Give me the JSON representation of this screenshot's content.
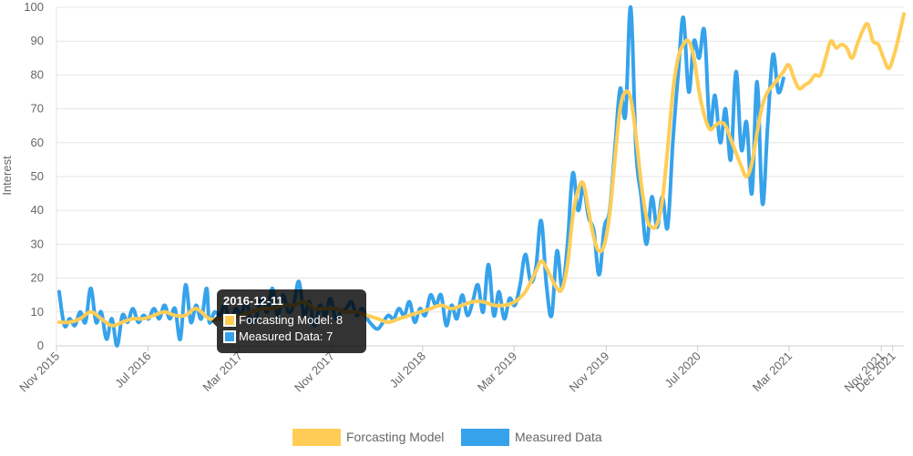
{
  "chart_data": {
    "type": "line",
    "ylabel": "Interest",
    "ylim": [
      0,
      100
    ],
    "yticks": [
      0,
      10,
      20,
      30,
      40,
      50,
      60,
      70,
      80,
      90,
      100
    ],
    "xlim": [
      "2015-11-01",
      "2021-12-31"
    ],
    "xticks": [
      {
        "label": "Nov 2015",
        "date": "2015-11-01"
      },
      {
        "label": "Jul 2016",
        "date": "2016-07-01"
      },
      {
        "label": "Mar 2017",
        "date": "2017-03-01"
      },
      {
        "label": "Nov 2017",
        "date": "2017-11-01"
      },
      {
        "label": "Jul 2018",
        "date": "2018-07-01"
      },
      {
        "label": "Mar 2019",
        "date": "2019-03-01"
      },
      {
        "label": "Nov 2019",
        "date": "2019-11-01"
      },
      {
        "label": "Jul 2020",
        "date": "2020-07-01"
      },
      {
        "label": "Mar 2021",
        "date": "2021-03-01"
      },
      {
        "label": "Nov 2021",
        "date": "2021-11-01"
      },
      {
        "label": "Dec 2021",
        "date": "2021-12-01"
      }
    ],
    "grid": true,
    "legend_position": "bottom",
    "series": [
      {
        "name": "Measured Data",
        "color": "#36A2EB",
        "points": [
          [
            "2015-11-08",
            16
          ],
          [
            "2015-11-22",
            6
          ],
          [
            "2015-12-06",
            8
          ],
          [
            "2015-12-20",
            6
          ],
          [
            "2016-01-03",
            10
          ],
          [
            "2016-01-17",
            7
          ],
          [
            "2016-01-31",
            17
          ],
          [
            "2016-02-14",
            7
          ],
          [
            "2016-02-28",
            10
          ],
          [
            "2016-03-13",
            2
          ],
          [
            "2016-03-27",
            8
          ],
          [
            "2016-04-10",
            0
          ],
          [
            "2016-04-24",
            9
          ],
          [
            "2016-05-08",
            7
          ],
          [
            "2016-05-22",
            11
          ],
          [
            "2016-06-05",
            7
          ],
          [
            "2016-06-19",
            9
          ],
          [
            "2016-07-03",
            8
          ],
          [
            "2016-07-17",
            11
          ],
          [
            "2016-07-31",
            8
          ],
          [
            "2016-08-14",
            12
          ],
          [
            "2016-08-28",
            8
          ],
          [
            "2016-09-11",
            11
          ],
          [
            "2016-09-25",
            2
          ],
          [
            "2016-10-09",
            18
          ],
          [
            "2016-10-23",
            7
          ],
          [
            "2016-11-06",
            12
          ],
          [
            "2016-11-20",
            8
          ],
          [
            "2016-12-04",
            17
          ],
          [
            "2016-12-11",
            7
          ],
          [
            "2016-12-25",
            10
          ],
          [
            "2017-01-08",
            9
          ],
          [
            "2017-01-22",
            12
          ],
          [
            "2017-02-05",
            6
          ],
          [
            "2017-02-19",
            11
          ],
          [
            "2017-03-05",
            9
          ],
          [
            "2017-03-19",
            13
          ],
          [
            "2017-04-02",
            7
          ],
          [
            "2017-04-16",
            9
          ],
          [
            "2017-04-30",
            14
          ],
          [
            "2017-05-14",
            10
          ],
          [
            "2017-05-28",
            17
          ],
          [
            "2017-06-11",
            9
          ],
          [
            "2017-06-25",
            15
          ],
          [
            "2017-07-09",
            10
          ],
          [
            "2017-07-23",
            12
          ],
          [
            "2017-08-06",
            19
          ],
          [
            "2017-08-20",
            9
          ],
          [
            "2017-09-03",
            13
          ],
          [
            "2017-09-17",
            6
          ],
          [
            "2017-10-01",
            12
          ],
          [
            "2017-10-15",
            9
          ],
          [
            "2017-10-29",
            14
          ],
          [
            "2017-11-12",
            8
          ],
          [
            "2017-11-26",
            10
          ],
          [
            "2017-12-10",
            11
          ],
          [
            "2017-12-24",
            13
          ],
          [
            "2018-01-07",
            9
          ],
          [
            "2018-01-21",
            11
          ],
          [
            "2018-02-04",
            8
          ],
          [
            "2018-02-18",
            6
          ],
          [
            "2018-03-04",
            5
          ],
          [
            "2018-03-18",
            7
          ],
          [
            "2018-04-01",
            9
          ],
          [
            "2018-04-15",
            8
          ],
          [
            "2018-04-29",
            11
          ],
          [
            "2018-05-13",
            9
          ],
          [
            "2018-05-27",
            13
          ],
          [
            "2018-06-10",
            7
          ],
          [
            "2018-06-24",
            11
          ],
          [
            "2018-07-08",
            9
          ],
          [
            "2018-07-22",
            15
          ],
          [
            "2018-08-05",
            12
          ],
          [
            "2018-08-19",
            15
          ],
          [
            "2018-09-02",
            6
          ],
          [
            "2018-09-16",
            12
          ],
          [
            "2018-09-30",
            8
          ],
          [
            "2018-10-14",
            15
          ],
          [
            "2018-10-28",
            9
          ],
          [
            "2018-11-11",
            13
          ],
          [
            "2018-11-25",
            18
          ],
          [
            "2018-12-09",
            10
          ],
          [
            "2018-12-23",
            24
          ],
          [
            "2019-01-06",
            9
          ],
          [
            "2019-01-20",
            16
          ],
          [
            "2019-02-03",
            8
          ],
          [
            "2019-02-17",
            14
          ],
          [
            "2019-03-03",
            12
          ],
          [
            "2019-03-17",
            18
          ],
          [
            "2019-03-31",
            27
          ],
          [
            "2019-04-14",
            19
          ],
          [
            "2019-04-28",
            23
          ],
          [
            "2019-05-12",
            37
          ],
          [
            "2019-05-26",
            18
          ],
          [
            "2019-06-09",
            9
          ],
          [
            "2019-06-23",
            28
          ],
          [
            "2019-07-07",
            17
          ],
          [
            "2019-07-21",
            30
          ],
          [
            "2019-08-04",
            51
          ],
          [
            "2019-08-18",
            40
          ],
          [
            "2019-09-01",
            47
          ],
          [
            "2019-09-15",
            38
          ],
          [
            "2019-09-29",
            34
          ],
          [
            "2019-10-13",
            21
          ],
          [
            "2019-10-27",
            35
          ],
          [
            "2019-11-10",
            40
          ],
          [
            "2019-11-24",
            58
          ],
          [
            "2019-12-08",
            76
          ],
          [
            "2019-12-22",
            68
          ],
          [
            "2020-01-05",
            100
          ],
          [
            "2020-01-19",
            58
          ],
          [
            "2020-02-02",
            44
          ],
          [
            "2020-02-16",
            30
          ],
          [
            "2020-03-01",
            44
          ],
          [
            "2020-03-15",
            35
          ],
          [
            "2020-03-29",
            44
          ],
          [
            "2020-04-12",
            35
          ],
          [
            "2020-04-26",
            60
          ],
          [
            "2020-05-10",
            80
          ],
          [
            "2020-05-24",
            97
          ],
          [
            "2020-06-07",
            75
          ],
          [
            "2020-06-21",
            90
          ],
          [
            "2020-07-05",
            85
          ],
          [
            "2020-07-19",
            93
          ],
          [
            "2020-08-02",
            65
          ],
          [
            "2020-08-16",
            74
          ],
          [
            "2020-08-30",
            60
          ],
          [
            "2020-09-13",
            70
          ],
          [
            "2020-09-27",
            55
          ],
          [
            "2020-10-11",
            81
          ],
          [
            "2020-10-25",
            58
          ],
          [
            "2020-11-08",
            66
          ],
          [
            "2020-11-22",
            45
          ],
          [
            "2020-12-06",
            78
          ],
          [
            "2020-12-20",
            42
          ],
          [
            "2021-01-03",
            65
          ],
          [
            "2021-01-17",
            86
          ],
          [
            "2021-01-31",
            75
          ],
          [
            "2021-02-14",
            79
          ]
        ]
      },
      {
        "name": "Forcasting Model",
        "color": "#FFCD56",
        "points": [
          [
            "2015-11-08",
            7
          ],
          [
            "2015-12-06",
            7
          ],
          [
            "2016-01-03",
            8
          ],
          [
            "2016-01-31",
            10
          ],
          [
            "2016-02-28",
            8
          ],
          [
            "2016-03-27",
            6
          ],
          [
            "2016-04-24",
            7
          ],
          [
            "2016-05-22",
            8
          ],
          [
            "2016-06-19",
            8
          ],
          [
            "2016-07-17",
            9
          ],
          [
            "2016-08-14",
            10
          ],
          [
            "2016-09-11",
            9
          ],
          [
            "2016-10-09",
            9
          ],
          [
            "2016-11-06",
            11
          ],
          [
            "2016-12-11",
            8
          ],
          [
            "2017-01-08",
            8
          ],
          [
            "2017-02-05",
            8
          ],
          [
            "2017-03-05",
            9
          ],
          [
            "2017-04-02",
            10
          ],
          [
            "2017-04-30",
            11
          ],
          [
            "2017-05-28",
            11
          ],
          [
            "2017-06-25",
            12
          ],
          [
            "2017-07-23",
            12
          ],
          [
            "2017-08-20",
            13
          ],
          [
            "2017-09-17",
            11
          ],
          [
            "2017-10-15",
            11
          ],
          [
            "2017-11-12",
            11
          ],
          [
            "2017-12-10",
            10
          ],
          [
            "2018-01-07",
            10
          ],
          [
            "2018-02-04",
            9
          ],
          [
            "2018-03-04",
            8
          ],
          [
            "2018-04-01",
            7
          ],
          [
            "2018-04-29",
            8
          ],
          [
            "2018-05-27",
            9
          ],
          [
            "2018-06-24",
            10
          ],
          [
            "2018-07-22",
            11
          ],
          [
            "2018-08-19",
            12
          ],
          [
            "2018-09-16",
            11
          ],
          [
            "2018-10-14",
            12
          ],
          [
            "2018-11-11",
            13
          ],
          [
            "2018-12-09",
            13
          ],
          [
            "2019-01-06",
            12
          ],
          [
            "2019-02-03",
            12
          ],
          [
            "2019-03-03",
            13
          ],
          [
            "2019-03-31",
            16
          ],
          [
            "2019-04-28",
            22
          ],
          [
            "2019-05-12",
            25
          ],
          [
            "2019-05-26",
            23
          ],
          [
            "2019-06-23",
            17
          ],
          [
            "2019-07-07",
            17
          ],
          [
            "2019-07-21",
            24
          ],
          [
            "2019-08-04",
            38
          ],
          [
            "2019-08-18",
            46
          ],
          [
            "2019-09-01",
            48
          ],
          [
            "2019-09-15",
            40
          ],
          [
            "2019-09-29",
            32
          ],
          [
            "2019-10-13",
            28
          ],
          [
            "2019-10-27",
            30
          ],
          [
            "2019-11-10",
            39
          ],
          [
            "2019-11-24",
            55
          ],
          [
            "2019-12-08",
            70
          ],
          [
            "2019-12-22",
            75
          ],
          [
            "2020-01-05",
            73
          ],
          [
            "2020-01-19",
            62
          ],
          [
            "2020-02-02",
            48
          ],
          [
            "2020-02-16",
            38
          ],
          [
            "2020-03-01",
            35
          ],
          [
            "2020-03-15",
            36
          ],
          [
            "2020-03-29",
            43
          ],
          [
            "2020-04-12",
            58
          ],
          [
            "2020-04-26",
            75
          ],
          [
            "2020-05-10",
            85
          ],
          [
            "2020-05-24",
            89
          ],
          [
            "2020-06-07",
            90
          ],
          [
            "2020-06-21",
            85
          ],
          [
            "2020-07-05",
            75
          ],
          [
            "2020-07-19",
            68
          ],
          [
            "2020-08-02",
            64
          ],
          [
            "2020-08-16",
            65
          ],
          [
            "2020-08-30",
            66
          ],
          [
            "2020-09-13",
            65
          ],
          [
            "2020-09-27",
            61
          ],
          [
            "2020-10-11",
            57
          ],
          [
            "2020-10-25",
            53
          ],
          [
            "2020-11-08",
            50
          ],
          [
            "2020-11-22",
            54
          ],
          [
            "2020-12-06",
            63
          ],
          [
            "2020-12-20",
            71
          ],
          [
            "2021-01-03",
            75
          ],
          [
            "2021-01-17",
            77
          ],
          [
            "2021-01-31",
            79
          ],
          [
            "2021-02-14",
            81
          ],
          [
            "2021-02-28",
            83
          ],
          [
            "2021-03-14",
            79
          ],
          [
            "2021-03-28",
            76
          ],
          [
            "2021-04-11",
            77
          ],
          [
            "2021-04-25",
            78
          ],
          [
            "2021-05-09",
            80
          ],
          [
            "2021-05-23",
            80
          ],
          [
            "2021-06-06",
            85
          ],
          [
            "2021-06-20",
            90
          ],
          [
            "2021-07-04",
            88
          ],
          [
            "2021-07-18",
            89
          ],
          [
            "2021-08-01",
            88
          ],
          [
            "2021-08-15",
            85
          ],
          [
            "2021-08-29",
            89
          ],
          [
            "2021-09-12",
            93
          ],
          [
            "2021-09-26",
            95
          ],
          [
            "2021-10-10",
            90
          ],
          [
            "2021-10-24",
            89
          ],
          [
            "2021-11-07",
            85
          ],
          [
            "2021-11-21",
            82
          ],
          [
            "2021-12-05",
            86
          ],
          [
            "2021-12-19",
            92
          ],
          [
            "2021-12-31",
            98
          ]
        ]
      }
    ],
    "tooltip": {
      "title": "2016-12-11",
      "rows": [
        {
          "label": "Forcasting Model: 8",
          "color": "#FFCD56"
        },
        {
          "label": "Measured Data: 7",
          "color": "#36A2EB"
        }
      ]
    }
  }
}
